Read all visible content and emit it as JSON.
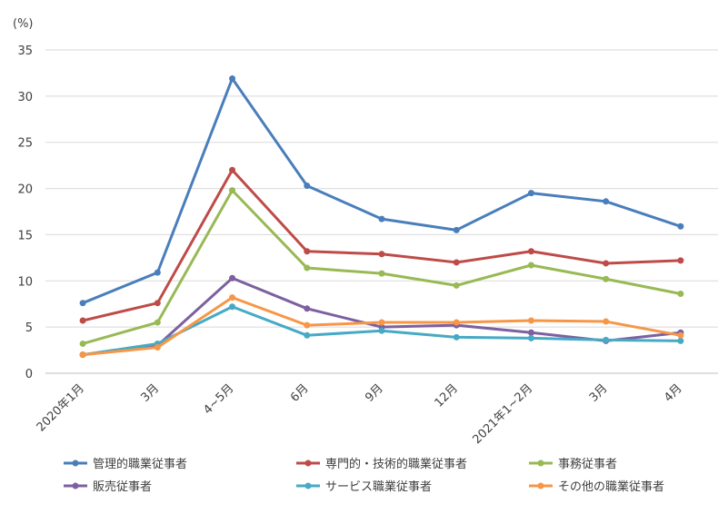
{
  "chart_data": {
    "type": "line",
    "yunit": "(%)",
    "ylim": [
      0,
      35
    ],
    "yticks": [
      0,
      5,
      10,
      15,
      20,
      25,
      30,
      35
    ],
    "grid": true,
    "legend_position": "bottom",
    "categories": [
      "2020年1月",
      "3月",
      "4~5月",
      "6月",
      "9月",
      "12月",
      "2021年1~2月",
      "3月",
      "4月"
    ],
    "series": [
      {
        "name": "管理的職業従事者",
        "color": "#4a7ebb",
        "values": [
          7.6,
          10.9,
          31.9,
          20.3,
          16.7,
          15.5,
          19.5,
          18.6,
          15.9
        ]
      },
      {
        "name": "専門的・技術的職業従事者",
        "color": "#be4b48",
        "values": [
          5.7,
          7.6,
          22.0,
          13.2,
          12.9,
          12.0,
          13.2,
          11.9,
          12.2
        ]
      },
      {
        "name": "事務従事者",
        "color": "#98b954",
        "values": [
          3.2,
          5.5,
          19.8,
          11.4,
          10.8,
          9.5,
          11.7,
          10.2,
          8.6
        ]
      },
      {
        "name": "販売従事者",
        "color": "#7d60a0",
        "values": [
          2.0,
          3.0,
          10.3,
          7.0,
          5.0,
          5.2,
          4.4,
          3.5,
          4.4
        ]
      },
      {
        "name": "サービス職業従事者",
        "color": "#46aac5",
        "values": [
          2.0,
          3.2,
          7.2,
          4.1,
          4.6,
          3.9,
          3.8,
          3.6,
          3.5
        ]
      },
      {
        "name": "その他の職業従事者",
        "color": "#f79646",
        "values": [
          2.0,
          2.8,
          8.2,
          5.2,
          5.5,
          5.5,
          5.7,
          5.6,
          4.1
        ]
      }
    ]
  }
}
